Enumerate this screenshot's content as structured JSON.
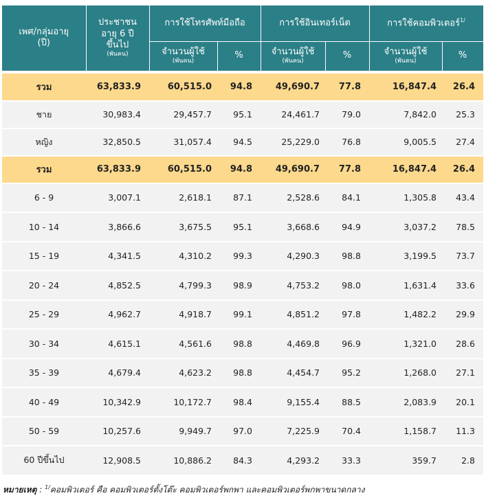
{
  "header": {
    "group": [
      "เพศ/กลุ่มอายุ",
      "(ปี)"
    ],
    "population": [
      "ประชาชน",
      "อายุ 6 ปี",
      "ขึ้นไป",
      "(พันคน)"
    ],
    "mobile": "การใช้โทรศัพท์มือถือ",
    "internet": "การใช้อินเทอร์เน็ต",
    "computer": "การใช้คอมพิวเตอร์",
    "computer_note": "1/",
    "users": "จำนวนผู้ใช้",
    "unit": "(พันคน)",
    "percent": "%"
  },
  "table": {
    "rows": [
      {
        "total": true,
        "cells": [
          "รวม",
          "63,833.9",
          "60,515.0",
          "94.8",
          "49,690.7",
          "77.8",
          "16,847.4",
          "26.4"
        ]
      },
      {
        "total": false,
        "cells": [
          "ชาย",
          "30,983.4",
          "29,457.7",
          "95.1",
          "24,461.7",
          "79.0",
          "7,842.0",
          "25.3"
        ]
      },
      {
        "total": false,
        "cells": [
          "หญิง",
          "32,850.5",
          "31,057.4",
          "94.5",
          "25,229.0",
          "76.8",
          "9,005.5",
          "27.4"
        ]
      },
      {
        "total": true,
        "cells": [
          "รวม",
          "63,833.9",
          "60,515.0",
          "94.8",
          "49,690.7",
          "77.8",
          "16,847.4",
          "26.4"
        ]
      },
      {
        "total": false,
        "cells": [
          "6 - 9",
          "3,007.1",
          "2,618.1",
          "87.1",
          "2,528.6",
          "84.1",
          "1,305.8",
          "43.4"
        ]
      },
      {
        "total": false,
        "cells": [
          "10 - 14",
          "3,866.6",
          "3,675.5",
          "95.1",
          "3,668.6",
          "94.9",
          "3,037.2",
          "78.5"
        ]
      },
      {
        "total": false,
        "cells": [
          "15 - 19",
          "4,341.5",
          "4,310.2",
          "99.3",
          "4,290.3",
          "98.8",
          "3,199.5",
          "73.7"
        ]
      },
      {
        "total": false,
        "cells": [
          "20 - 24",
          "4,852.5",
          "4,799.3",
          "98.9",
          "4,753.2",
          "98.0",
          "1,631.4",
          "33.6"
        ]
      },
      {
        "total": false,
        "cells": [
          "25 - 29",
          "4,962.7",
          "4,918.7",
          "99.1",
          "4,851.2",
          "97.8",
          "1,482.2",
          "29.9"
        ]
      },
      {
        "total": false,
        "cells": [
          "30 - 34",
          "4,615.1",
          "4,561.6",
          "98.8",
          "4,469.8",
          "96.9",
          "1,321.0",
          "28.6"
        ]
      },
      {
        "total": false,
        "cells": [
          "35 - 39",
          "4,679.4",
          "4,623.2",
          "98.8",
          "4,454.7",
          "95.2",
          "1,268.0",
          "27.1"
        ]
      },
      {
        "total": false,
        "cells": [
          "40 - 49",
          "10,342.9",
          "10,172.7",
          "98.4",
          "9,155.4",
          "88.5",
          "2,083.9",
          "20.1"
        ]
      },
      {
        "total": false,
        "cells": [
          "50 - 59",
          "10,257.6",
          "9,949.7",
          "97.0",
          "7,225.9",
          "70.4",
          "1,158.7",
          "11.3"
        ]
      },
      {
        "total": false,
        "cells": [
          "60 ปีขึ้นไป",
          "12,908.5",
          "10,886.2",
          "84.3",
          "4,293.2",
          "33.3",
          "359.7",
          "2.8"
        ]
      }
    ]
  },
  "footnote": {
    "label": "หมายเหตุ",
    "colon": ":",
    "mark": "1/",
    "text": "คอมพิวเตอร์ คือ คอมพิวเตอร์ตั้งโต๊ะ คอมพิวเตอร์พกพา และคอมพิวเตอร์พกพาขนาดกลาง"
  }
}
